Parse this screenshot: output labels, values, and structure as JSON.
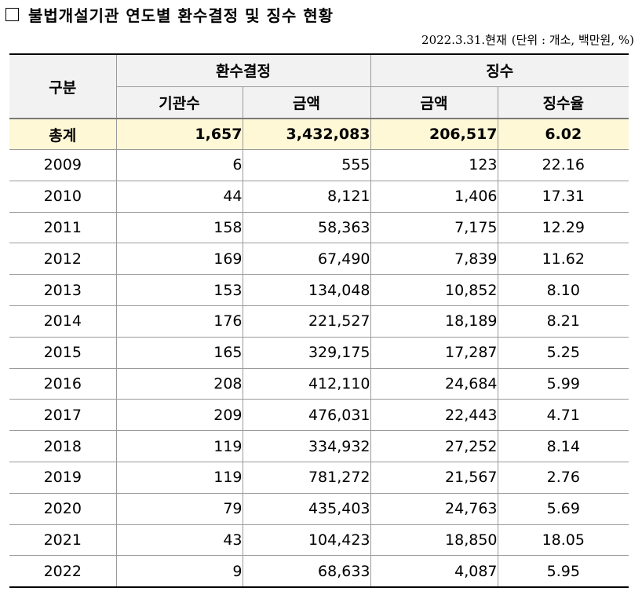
{
  "title": "불법개설기관 연도별 환수결정 및 징수 현황",
  "meta": {
    "as_of": "2022.3.31.현재",
    "unit_note": "(단위 : 개소, 백만원, %)"
  },
  "table": {
    "header": {
      "group_label": "구분",
      "decision_label": "환수결정",
      "collection_label": "징수",
      "institutions_label": "기관수",
      "decision_amount_label": "금액",
      "collection_amount_label": "금액",
      "rate_label": "징수율"
    },
    "total": {
      "label": "총계",
      "institutions": "1,657",
      "decision_amount": "3,432,083",
      "collection_amount": "206,517",
      "rate": "6.02"
    },
    "rows": [
      {
        "year": "2009",
        "institutions": "6",
        "decision_amount": "555",
        "collection_amount": "123",
        "rate": "22.16"
      },
      {
        "year": "2010",
        "institutions": "44",
        "decision_amount": "8,121",
        "collection_amount": "1,406",
        "rate": "17.31"
      },
      {
        "year": "2011",
        "institutions": "158",
        "decision_amount": "58,363",
        "collection_amount": "7,175",
        "rate": "12.29"
      },
      {
        "year": "2012",
        "institutions": "169",
        "decision_amount": "67,490",
        "collection_amount": "7,839",
        "rate": "11.62"
      },
      {
        "year": "2013",
        "institutions": "153",
        "decision_amount": "134,048",
        "collection_amount": "10,852",
        "rate": "8.10"
      },
      {
        "year": "2014",
        "institutions": "176",
        "decision_amount": "221,527",
        "collection_amount": "18,189",
        "rate": "8.21"
      },
      {
        "year": "2015",
        "institutions": "165",
        "decision_amount": "329,175",
        "collection_amount": "17,287",
        "rate": "5.25"
      },
      {
        "year": "2016",
        "institutions": "208",
        "decision_amount": "412,110",
        "collection_amount": "24,684",
        "rate": "5.99"
      },
      {
        "year": "2017",
        "institutions": "209",
        "decision_amount": "476,031",
        "collection_amount": "22,443",
        "rate": "4.71"
      },
      {
        "year": "2018",
        "institutions": "119",
        "decision_amount": "334,932",
        "collection_amount": "27,252",
        "rate": "8.14"
      },
      {
        "year": "2019",
        "institutions": "119",
        "decision_amount": "781,272",
        "collection_amount": "21,567",
        "rate": "2.76"
      },
      {
        "year": "2020",
        "institutions": "79",
        "decision_amount": "435,403",
        "collection_amount": "24,763",
        "rate": "5.69"
      },
      {
        "year": "2021",
        "institutions": "43",
        "decision_amount": "104,423",
        "collection_amount": "18,850",
        "rate": "18.05"
      },
      {
        "year": "2022",
        "institutions": "9",
        "decision_amount": "68,633",
        "collection_amount": "4,087",
        "rate": "5.95"
      }
    ]
  }
}
